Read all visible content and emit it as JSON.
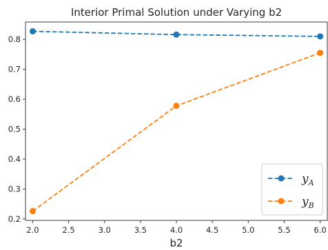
{
  "chart_data": {
    "type": "line",
    "title": "Interior Primal Solution under Varying b2",
    "xlabel": "b2",
    "ylabel": "",
    "x": [
      2.0,
      4.0,
      6.0
    ],
    "xlim": [
      1.9,
      6.1
    ],
    "ylim": [
      0.195,
      0.858
    ],
    "xticks": [
      "2.0",
      "2.5",
      "3.0",
      "3.5",
      "4.0",
      "4.5",
      "5.0",
      "5.5",
      "6.0"
    ],
    "xtick_values": [
      2.0,
      2.5,
      3.0,
      3.5,
      4.0,
      4.5,
      5.0,
      5.5,
      6.0
    ],
    "yticks": [
      "0.2",
      "0.3",
      "0.4",
      "0.5",
      "0.6",
      "0.7",
      "0.8"
    ],
    "ytick_values": [
      0.2,
      0.3,
      0.4,
      0.5,
      0.6,
      0.7,
      0.8
    ],
    "grid": false,
    "legend_position": "lower-right",
    "series": [
      {
        "name_main": "y",
        "name_sub": "A",
        "values": [
          0.827,
          0.816,
          0.81
        ],
        "color": "#1f77b4",
        "linestyle": "dashed",
        "marker": "circle"
      },
      {
        "name_main": "y",
        "name_sub": "B",
        "values": [
          0.226,
          0.578,
          0.755
        ],
        "color": "#ff7f0e",
        "linestyle": "dashed",
        "marker": "circle"
      }
    ]
  }
}
